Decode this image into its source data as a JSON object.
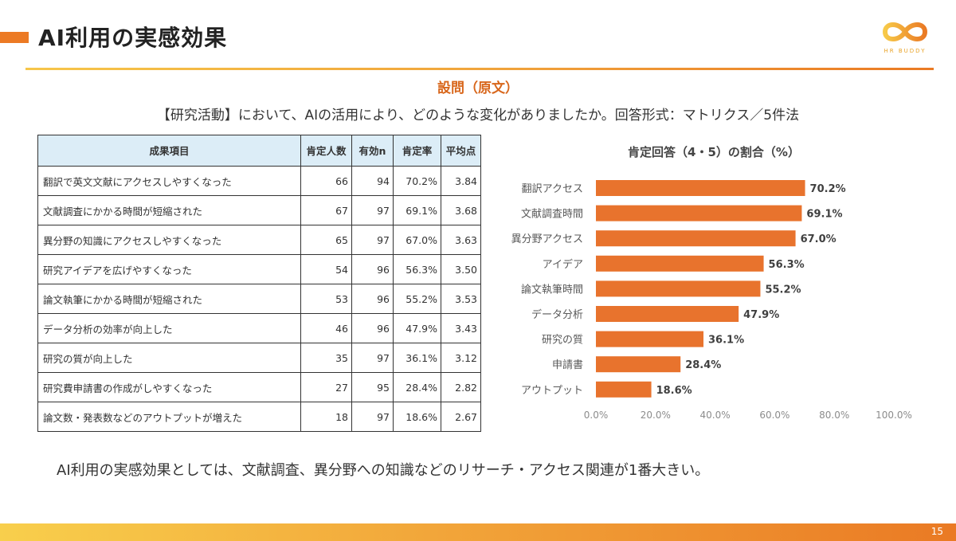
{
  "slide": {
    "title": "AI利用の実感効果",
    "page_number": "15",
    "accent_color": "#ec7a24"
  },
  "logo": {
    "text": "HR BUDDY"
  },
  "question": {
    "heading": "設問（原文）",
    "text": "【研究活動】において、AIの活用により、どのような変化がありましたか。回答形式：マトリクス／5件法"
  },
  "table": {
    "headers": [
      "成果項目",
      "肯定人数",
      "有効n",
      "肯定率",
      "平均点"
    ],
    "rows": [
      [
        "翻訳で英文文献にアクセスしやすくなった",
        "66",
        "94",
        "70.2%",
        "3.84"
      ],
      [
        "文献調査にかかる時間が短縮された",
        "67",
        "97",
        "69.1%",
        "3.68"
      ],
      [
        "異分野の知識にアクセスしやすくなった",
        "65",
        "97",
        "67.0%",
        "3.63"
      ],
      [
        "研究アイデアを広げやすくなった",
        "54",
        "96",
        "56.3%",
        "3.50"
      ],
      [
        "論文執筆にかかる時間が短縮された",
        "53",
        "96",
        "55.2%",
        "3.53"
      ],
      [
        "データ分析の効率が向上した",
        "46",
        "96",
        "47.9%",
        "3.43"
      ],
      [
        "研究の質が向上した",
        "35",
        "97",
        "36.1%",
        "3.12"
      ],
      [
        "研究費申請書の作成がしやすくなった",
        "27",
        "95",
        "28.4%",
        "2.82"
      ],
      [
        "論文数・発表数などのアウトプットが増えた",
        "18",
        "97",
        "18.6%",
        "2.67"
      ]
    ],
    "header_bg": "#dcedf7"
  },
  "chart_data": {
    "type": "bar",
    "orientation": "horizontal",
    "title": "肯定回答（4・5）の割合（%）",
    "categories": [
      "翻訳アクセス",
      "文献調査時間",
      "異分野アクセス",
      "アイデア",
      "論文執筆時間",
      "データ分析",
      "研究の質",
      "申請書",
      "アウトプット"
    ],
    "values": [
      70.2,
      69.1,
      67.0,
      56.3,
      55.2,
      47.9,
      36.1,
      28.4,
      18.6
    ],
    "value_labels": [
      "70.2%",
      "69.1%",
      "67.0%",
      "56.3%",
      "55.2%",
      "47.9%",
      "36.1%",
      "28.4%",
      "18.6%"
    ],
    "xlim": [
      0,
      100
    ],
    "xticks": [
      "0.0%",
      "20.0%",
      "40.0%",
      "60.0%",
      "80.0%",
      "100.0%"
    ],
    "bar_color": "#e8732d",
    "grid": false,
    "legend": false
  },
  "summary": "AI利用の実感効果としては、文献調査、異分野への知識などのリサーチ・アクセス関連が1番大きい。"
}
